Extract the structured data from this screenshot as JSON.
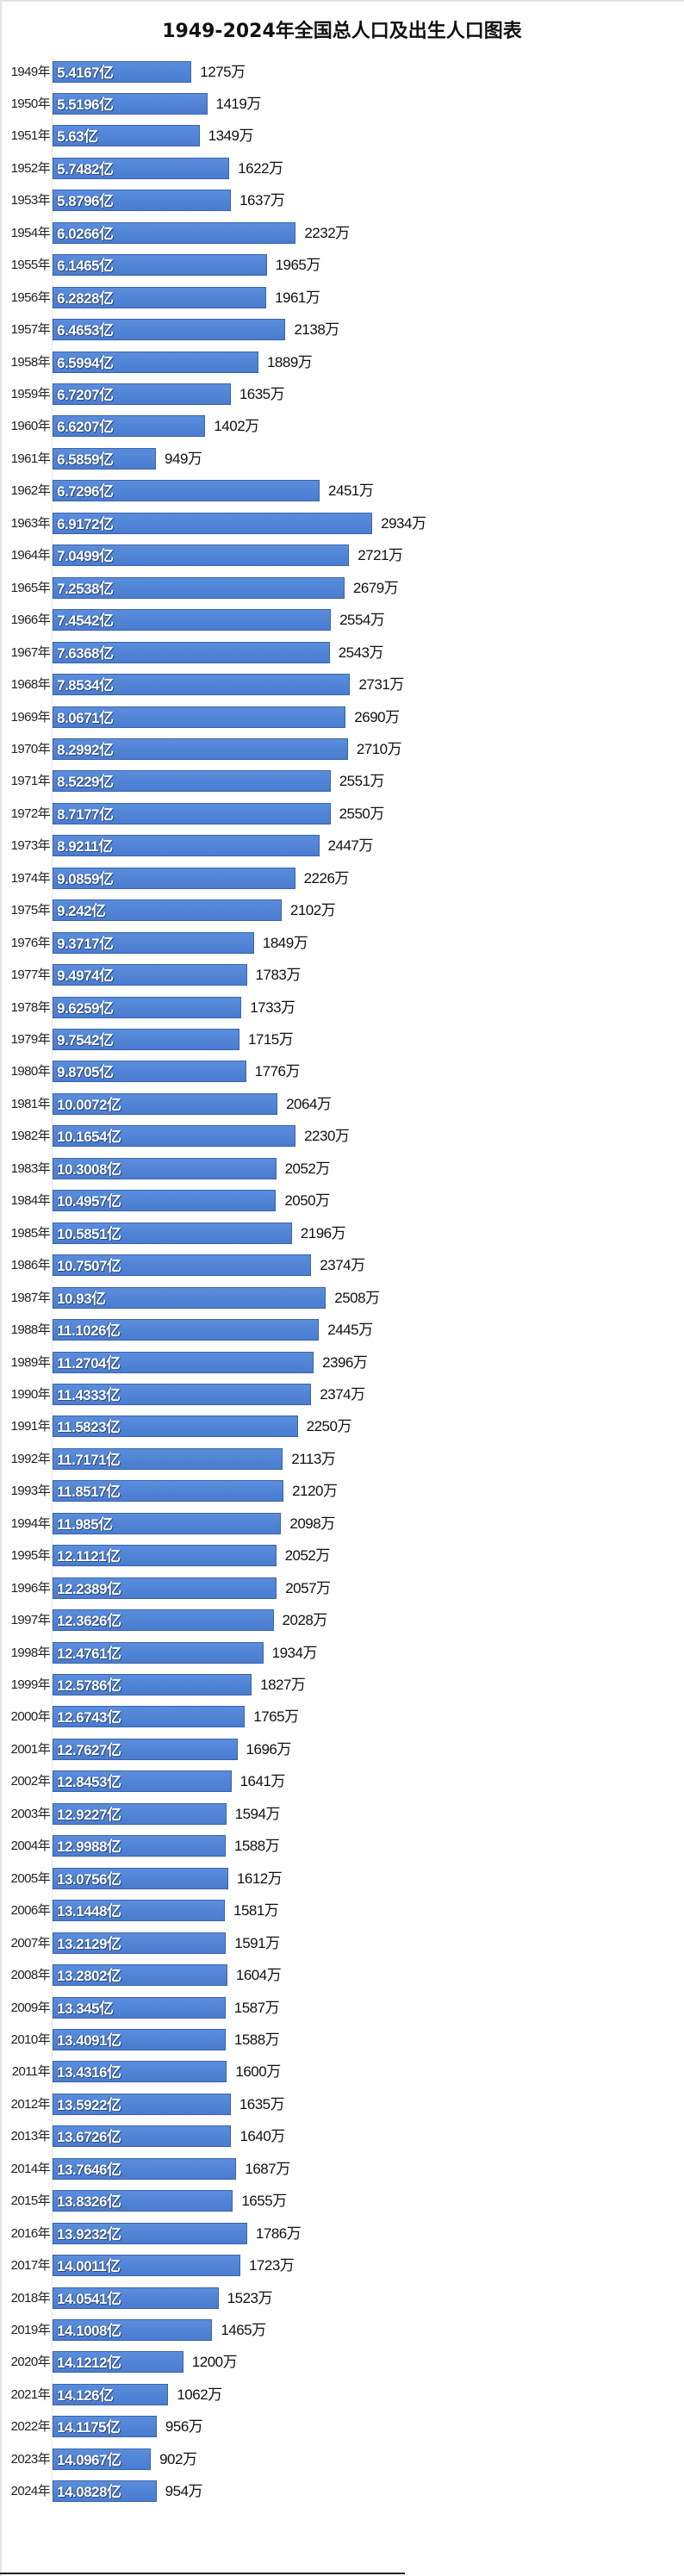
{
  "chart_data": {
    "type": "bar",
    "orientation": "horizontal",
    "title": "1949-2024年全国总人口及出生人口图表",
    "year_suffix": "年",
    "population_unit": "亿",
    "births_unit": "万",
    "colors": {
      "bar": "#4a7cd0",
      "bar_border": "#3c64a8"
    },
    "categories": [
      "1949",
      "1950",
      "1951",
      "1952",
      "1953",
      "1954",
      "1955",
      "1956",
      "1957",
      "1958",
      "1959",
      "1960",
      "1961",
      "1962",
      "1963",
      "1964",
      "1965",
      "1966",
      "1967",
      "1968",
      "1969",
      "1970",
      "1971",
      "1972",
      "1973",
      "1974",
      "1975",
      "1976",
      "1977",
      "1978",
      "1979",
      "1980",
      "1981",
      "1982",
      "1983",
      "1984",
      "1985",
      "1986",
      "1987",
      "1988",
      "1989",
      "1990",
      "1991",
      "1992",
      "1993",
      "1994",
      "1995",
      "1996",
      "1997",
      "1998",
      "1999",
      "2000",
      "2001",
      "2002",
      "2003",
      "2004",
      "2005",
      "2006",
      "2007",
      "2008",
      "2009",
      "2010",
      "2011",
      "2012",
      "2013",
      "2014",
      "2015",
      "2016",
      "2017",
      "2018",
      "2019",
      "2020",
      "2021",
      "2022",
      "2023",
      "2024"
    ],
    "series": [
      {
        "name": "出生人口(万)",
        "values": [
          1275,
          1419,
          1349,
          1622,
          1637,
          2232,
          1965,
          1961,
          2138,
          1889,
          1635,
          1402,
          949,
          2451,
          2934,
          2721,
          2679,
          2554,
          2543,
          2731,
          2690,
          2710,
          2551,
          2550,
          2447,
          2226,
          2102,
          1849,
          1783,
          1733,
          1715,
          1776,
          2064,
          2230,
          2052,
          2050,
          2196,
          2374,
          2508,
          2445,
          2396,
          2374,
          2250,
          2113,
          2120,
          2098,
          2052,
          2057,
          2028,
          1934,
          1827,
          1765,
          1696,
          1641,
          1594,
          1588,
          1612,
          1581,
          1591,
          1604,
          1587,
          1588,
          1600,
          1635,
          1640,
          1687,
          1655,
          1786,
          1723,
          1523,
          1465,
          1200,
          1062,
          956,
          902,
          954
        ]
      },
      {
        "name": "全国总人口(亿)",
        "values": [
          "5.4167",
          "5.5196",
          "5.63",
          "5.7482",
          "5.8796",
          "6.0266",
          "6.1465",
          "6.2828",
          "6.4653",
          "6.5994",
          "6.7207",
          "6.6207",
          "6.5859",
          "6.7296",
          "6.9172",
          "7.0499",
          "7.2538",
          "7.4542",
          "7.6368",
          "7.8534",
          "8.0671",
          "8.2992",
          "8.5229",
          "8.7177",
          "8.9211",
          "9.0859",
          "9.242",
          "9.3717",
          "9.4974",
          "9.6259",
          "9.7542",
          "9.8705",
          "10.0072",
          "10.1654",
          "10.3008",
          "10.4957",
          "10.5851",
          "10.7507",
          "10.93",
          "11.1026",
          "11.2704",
          "11.4333",
          "11.5823",
          "11.7171",
          "11.8517",
          "11.985",
          "12.1121",
          "12.2389",
          "12.3626",
          "12.4761",
          "12.5786",
          "12.6743",
          "12.7627",
          "12.8453",
          "12.9227",
          "12.9988",
          "13.0756",
          "13.1448",
          "13.2129",
          "13.2802",
          "13.345",
          "13.4091",
          "13.4316",
          "13.5922",
          "13.6726",
          "13.7646",
          "13.8326",
          "13.9232",
          "14.0011",
          "14.0541",
          "14.1008",
          "14.1212",
          "14.126",
          "14.1175",
          "14.0967",
          "14.0828"
        ]
      }
    ],
    "xlim": [
      0,
      3000
    ],
    "grid": false,
    "legend": "none"
  }
}
